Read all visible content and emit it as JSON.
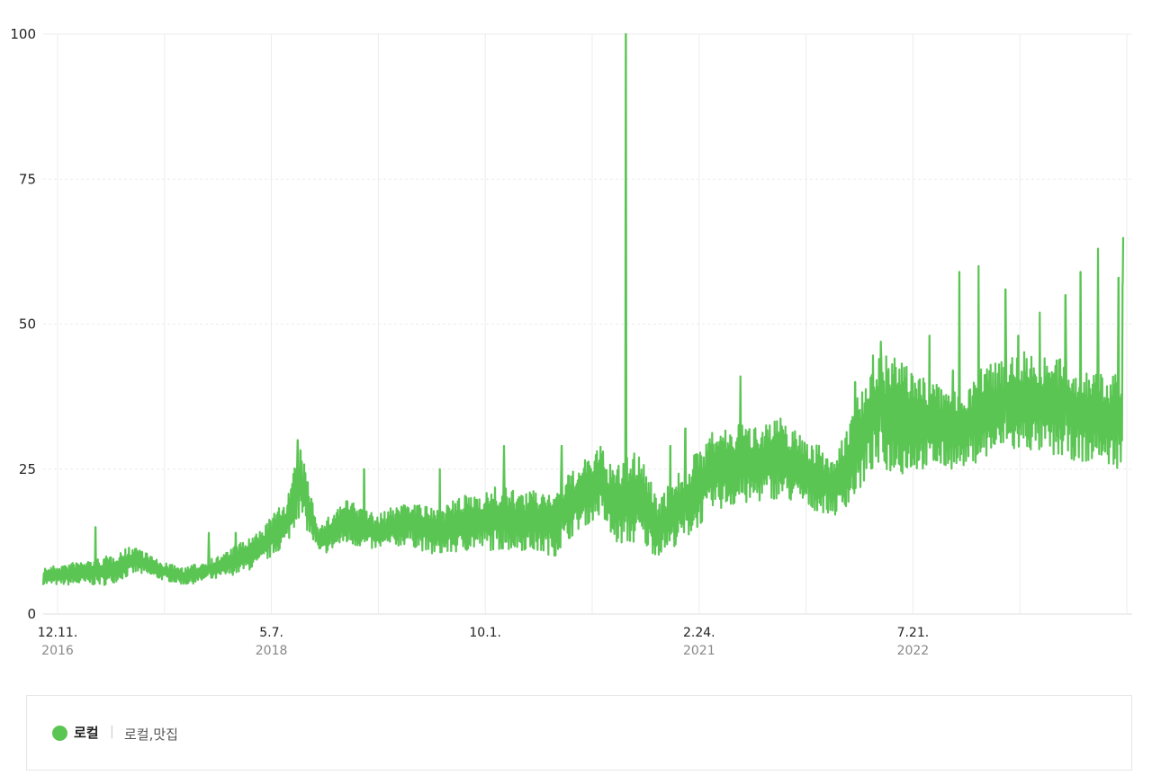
{
  "chart_data": {
    "type": "line",
    "title": "",
    "xlabel": "",
    "ylabel": "",
    "ylim": [
      0,
      100
    ],
    "y_ticks": [
      "0",
      "25",
      "50",
      "75",
      "100"
    ],
    "x_ticks": [
      {
        "label": "12.11.",
        "year": "2016"
      },
      {
        "label": "5.7.",
        "year": "2018"
      },
      {
        "label": "10.1.",
        "year": ""
      },
      {
        "label": "2.24.",
        "year": "2021"
      },
      {
        "label": "7.21.",
        "year": "2022"
      }
    ],
    "grid": true,
    "legend_position": "bottom",
    "series": [
      {
        "name": "로컬",
        "terms": "로컬,맛집",
        "color": "#5bc554",
        "x_start": "2016-12-11",
        "x_end": "2023-12-31",
        "envelope": [
          {
            "x": "2016-12-11",
            "low": 5,
            "high": 8
          },
          {
            "x": "2017-03-01",
            "low": 5,
            "high": 9
          },
          {
            "x": "2017-05-15",
            "low": 5,
            "high": 10
          },
          {
            "x": "2017-07-20",
            "low": 7,
            "high": 12
          },
          {
            "x": "2017-09-15",
            "low": 6,
            "high": 9
          },
          {
            "x": "2017-11-15",
            "low": 5,
            "high": 8
          },
          {
            "x": "2018-02-01",
            "low": 6,
            "high": 10
          },
          {
            "x": "2018-05-07",
            "low": 8,
            "high": 14
          },
          {
            "x": "2018-07-15",
            "low": 12,
            "high": 20
          },
          {
            "x": "2018-08-15",
            "low": 17,
            "high": 29
          },
          {
            "x": "2018-10-01",
            "low": 10,
            "high": 15
          },
          {
            "x": "2018-12-01",
            "low": 12,
            "high": 20
          },
          {
            "x": "2019-02-15",
            "low": 11,
            "high": 17
          },
          {
            "x": "2019-05-01",
            "low": 12,
            "high": 20
          },
          {
            "x": "2019-07-01",
            "low": 10,
            "high": 18
          },
          {
            "x": "2019-10-01",
            "low": 11,
            "high": 21
          },
          {
            "x": "2019-12-01",
            "low": 11,
            "high": 22
          },
          {
            "x": "2020-02-01",
            "low": 11,
            "high": 21
          },
          {
            "x": "2020-04-15",
            "low": 10,
            "high": 22
          },
          {
            "x": "2020-06-01",
            "low": 14,
            "high": 25
          },
          {
            "x": "2020-08-01",
            "low": 17,
            "high": 29
          },
          {
            "x": "2020-09-01",
            "low": 12,
            "high": 25
          },
          {
            "x": "2020-11-01",
            "low": 12,
            "high": 29
          },
          {
            "x": "2020-12-15",
            "low": 10,
            "high": 20
          },
          {
            "x": "2021-02-24",
            "low": 13,
            "high": 26
          },
          {
            "x": "2021-05-01",
            "low": 18,
            "high": 32
          },
          {
            "x": "2021-08-01",
            "low": 19,
            "high": 33
          },
          {
            "x": "2021-10-01",
            "low": 20,
            "high": 34
          },
          {
            "x": "2021-12-15",
            "low": 18,
            "high": 30
          },
          {
            "x": "2022-02-15",
            "low": 17,
            "high": 27
          },
          {
            "x": "2022-04-01",
            "low": 20,
            "high": 37
          },
          {
            "x": "2022-05-15",
            "low": 25,
            "high": 45
          },
          {
            "x": "2022-07-21",
            "low": 24,
            "high": 44
          },
          {
            "x": "2022-09-15",
            "low": 25,
            "high": 41
          },
          {
            "x": "2022-12-01",
            "low": 25,
            "high": 38
          },
          {
            "x": "2023-02-15",
            "low": 27,
            "high": 44
          },
          {
            "x": "2023-05-15",
            "low": 28,
            "high": 46
          },
          {
            "x": "2023-08-01",
            "low": 27,
            "high": 44
          },
          {
            "x": "2023-10-15",
            "low": 26,
            "high": 42
          },
          {
            "x": "2023-12-31",
            "low": 25,
            "high": 41
          }
        ],
        "spikes": [
          {
            "x": "2017-04-15",
            "y": 15
          },
          {
            "x": "2018-01-10",
            "y": 14
          },
          {
            "x": "2018-03-15",
            "y": 14
          },
          {
            "x": "2018-08-10",
            "y": 30
          },
          {
            "x": "2019-01-15",
            "y": 25
          },
          {
            "x": "2019-07-15",
            "y": 25
          },
          {
            "x": "2019-12-15",
            "y": 29
          },
          {
            "x": "2020-05-01",
            "y": 29
          },
          {
            "x": "2020-10-01",
            "y": 100
          },
          {
            "x": "2021-01-15",
            "y": 29
          },
          {
            "x": "2021-02-20",
            "y": 32
          },
          {
            "x": "2021-07-01",
            "y": 41
          },
          {
            "x": "2021-09-15",
            "y": 30
          },
          {
            "x": "2022-04-01",
            "y": 40
          },
          {
            "x": "2022-06-01",
            "y": 47
          },
          {
            "x": "2022-08-15",
            "y": 41
          },
          {
            "x": "2022-09-25",
            "y": 48
          },
          {
            "x": "2022-11-20",
            "y": 42
          },
          {
            "x": "2022-12-05",
            "y": 59
          },
          {
            "x": "2023-01-20",
            "y": 60
          },
          {
            "x": "2023-03-25",
            "y": 56
          },
          {
            "x": "2023-04-25",
            "y": 48
          },
          {
            "x": "2023-06-15",
            "y": 52
          },
          {
            "x": "2023-08-15",
            "y": 55
          },
          {
            "x": "2023-09-20",
            "y": 59
          },
          {
            "x": "2023-11-01",
            "y": 63
          },
          {
            "x": "2023-12-20",
            "y": 58
          },
          {
            "x": "2023-12-30",
            "y": 57
          },
          {
            "x": "2023-12-31",
            "y": 65
          }
        ]
      }
    ]
  }
}
